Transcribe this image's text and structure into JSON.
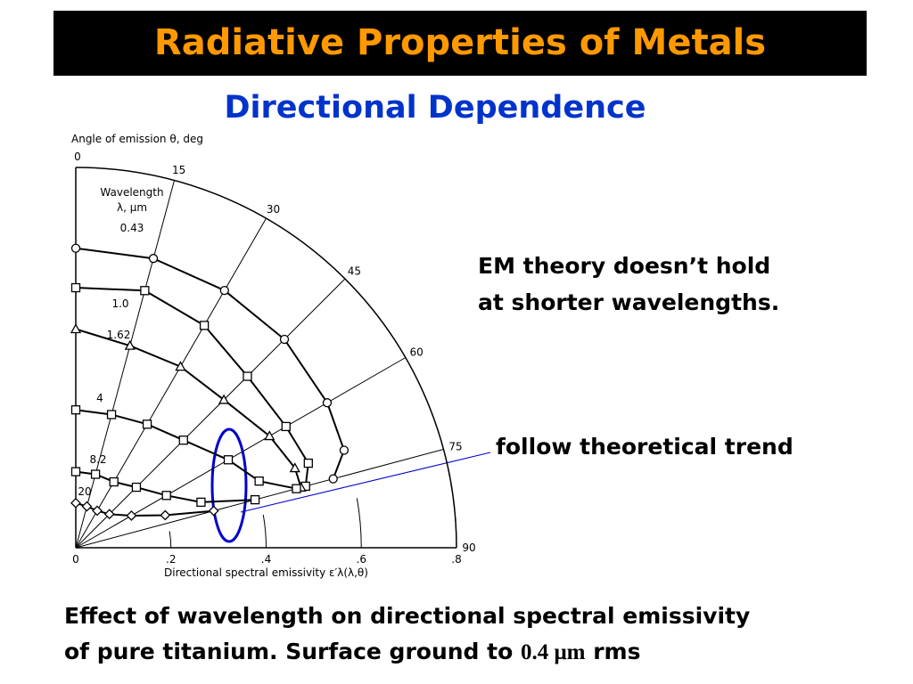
{
  "title": "Radiative Properties of Metals",
  "subtitle": "Directional Dependence",
  "annotations": [
    "EM theory doesn’t hold",
    "at shorter wavelengths.",
    "follow theoretical trend"
  ],
  "caption": {
    "line1": "Effect of wavelength on directional spectral emissivity",
    "line2": [
      "of pure titanium. Surface ground to ",
      "0.4 μm",
      " rms"
    ]
  },
  "chart_data": {
    "type": "polar",
    "angle_title": "Angle of emission θ, deg",
    "radius_title": "Directional spectral emissivity ε′λ(λ,θ)",
    "legend_title": [
      "Wavelength",
      "λ, μm"
    ],
    "angles": [
      0,
      15,
      30,
      45,
      60,
      70,
      75
    ],
    "angle_ticks": [
      0,
      15,
      30,
      45,
      60,
      75,
      90
    ],
    "rlim": [
      0,
      0.8
    ],
    "rticks": [
      0,
      {
        "value": 0.2,
        "label": ".2"
      },
      {
        "value": 0.4,
        "label": ".4"
      },
      {
        "value": 0.6,
        "label": ".6"
      },
      {
        "value": 0.8,
        "label": ".8"
      }
    ],
    "color": "#000000",
    "series": [
      {
        "name": "0.43",
        "marker": "circle",
        "values": [
          0.63,
          0.63,
          0.625,
          0.62,
          0.61,
          0.6,
          0.56
        ]
      },
      {
        "name": "1.0",
        "marker": "square",
        "values": [
          0.547,
          0.56,
          0.54,
          0.51,
          0.51,
          0.52,
          0.5
        ]
      },
      {
        "name": "1.62",
        "marker": "triangle",
        "values": [
          0.46,
          0.44,
          0.44,
          0.44,
          0.47,
          0.49,
          0.49
        ]
      },
      {
        "name": "4",
        "marker": "square",
        "values": [
          0.29,
          0.29,
          0.3,
          0.32,
          0.37,
          0.41,
          0.48
        ]
      },
      {
        "name": "8.2",
        "marker": "square",
        "values": [
          0.16,
          0.16,
          0.16,
          0.18,
          0.22,
          0.28,
          0.39
        ]
      },
      {
        "name": "20",
        "marker": "diamond",
        "values": [
          0.094,
          0.09,
          0.09,
          0.1,
          0.135,
          0.2,
          0.3
        ]
      }
    ]
  }
}
